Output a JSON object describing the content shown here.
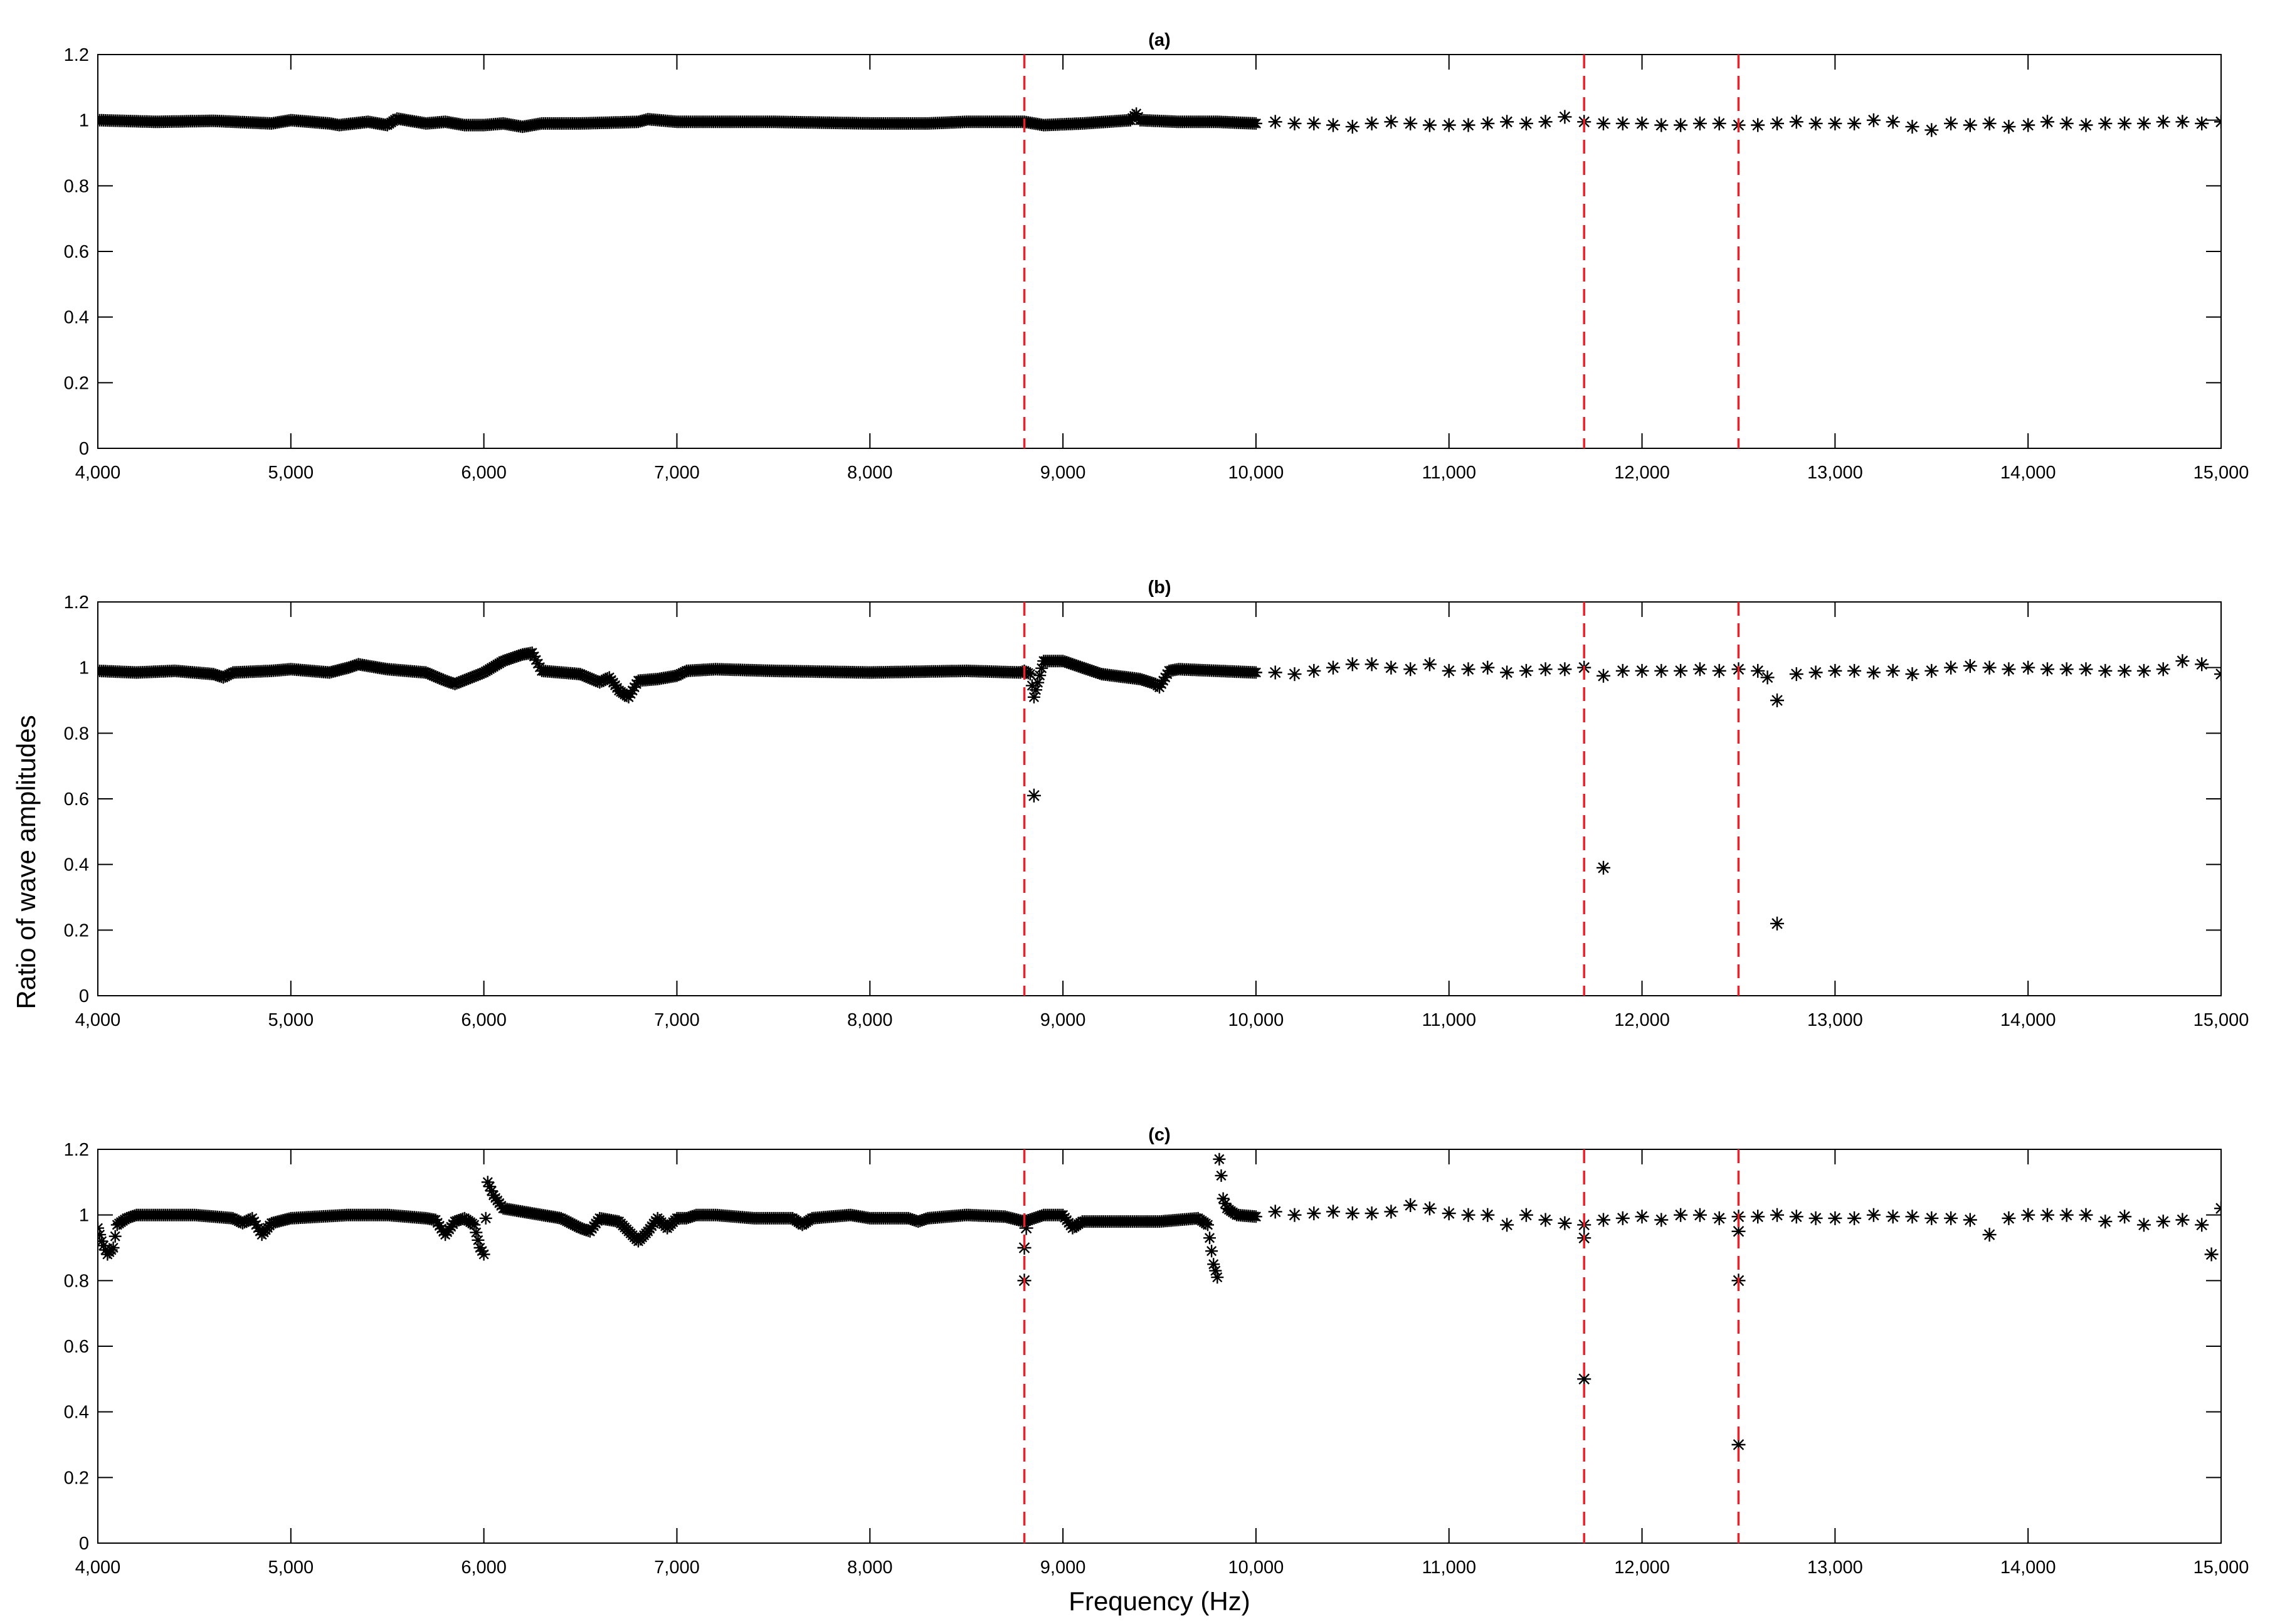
{
  "figure": {
    "ylabel": "Ratio of wave amplitudes",
    "xlabel": "Frequency (Hz)"
  },
  "chart_data": [
    {
      "type": "scatter",
      "title": "(a)",
      "marker": "asterisk",
      "marker_color": "#000000",
      "xlim": [
        4000,
        15000
      ],
      "ylim": [
        0,
        1.2
      ],
      "x_ticks": [
        4000,
        5000,
        6000,
        7000,
        8000,
        9000,
        10000,
        11000,
        12000,
        13000,
        14000,
        15000
      ],
      "x_tick_labels": [
        "4,000",
        "5,000",
        "6,000",
        "7,000",
        "8,000",
        "9,000",
        "10,000",
        "11,000",
        "12,000",
        "13,000",
        "14,000",
        "15,000"
      ],
      "y_ticks": [
        0,
        0.2,
        0.4,
        0.6,
        0.8,
        1,
        1.2
      ],
      "y_tick_labels": [
        "0",
        "0.2",
        "0.4",
        "0.6",
        "0.8",
        "1",
        "1.2"
      ],
      "reference_lines": {
        "x": [
          8800,
          11700,
          12500
        ],
        "color": "#e8222b",
        "style": "dashed"
      },
      "series": [
        {
          "style": "dense",
          "x": [
            4000,
            4300,
            4600,
            4900,
            5000,
            5200,
            5250,
            5400,
            5500,
            5550,
            5700,
            5800,
            5900,
            6000,
            6100,
            6200,
            6300,
            6500,
            6800,
            6850,
            7000,
            7500,
            8000,
            8300,
            8500,
            8800,
            8850,
            8900,
            9100,
            9350,
            9380,
            9400,
            9600,
            9800,
            10000
          ],
          "y": [
            1.0,
            0.995,
            0.998,
            0.99,
            1.0,
            0.99,
            0.985,
            0.995,
            0.985,
            1.005,
            0.99,
            0.995,
            0.985,
            0.985,
            0.99,
            0.98,
            0.99,
            0.99,
            0.995,
            1.003,
            0.995,
            0.995,
            0.99,
            0.99,
            0.995,
            0.995,
            0.99,
            0.985,
            0.99,
            1.0,
            1.02,
            1.0,
            0.995,
            0.995,
            0.99
          ]
        },
        {
          "style": "sparse",
          "x": [
            10100,
            10200,
            10300,
            10400,
            10500,
            10600,
            10700,
            10800,
            10900,
            11000,
            11100,
            11200,
            11300,
            11400,
            11500,
            11600,
            11700,
            11800,
            11900,
            12000,
            12100,
            12200,
            12300,
            12400,
            12500,
            12600,
            12700,
            12800,
            12900,
            13000,
            13100,
            13200,
            13300,
            13400,
            13500,
            13600,
            13700,
            13800,
            13900,
            14000,
            14100,
            14200,
            14300,
            14400,
            14500,
            14600,
            14700,
            14800,
            14900,
            15000
          ],
          "y": [
            0.995,
            0.99,
            0.99,
            0.985,
            0.98,
            0.99,
            0.995,
            0.99,
            0.985,
            0.985,
            0.985,
            0.99,
            0.995,
            0.99,
            0.995,
            1.01,
            0.995,
            0.99,
            0.99,
            0.99,
            0.985,
            0.985,
            0.99,
            0.99,
            0.985,
            0.985,
            0.99,
            0.995,
            0.99,
            0.99,
            0.99,
            1.0,
            0.995,
            0.98,
            0.97,
            0.99,
            0.985,
            0.99,
            0.98,
            0.985,
            0.995,
            0.99,
            0.985,
            0.99,
            0.99,
            0.99,
            0.995,
            0.995,
            0.99,
            0.995
          ]
        }
      ]
    },
    {
      "type": "scatter",
      "title": "(b)",
      "marker": "asterisk",
      "marker_color": "#000000",
      "xlim": [
        4000,
        15000
      ],
      "ylim": [
        0,
        1.2
      ],
      "x_ticks": [
        4000,
        5000,
        6000,
        7000,
        8000,
        9000,
        10000,
        11000,
        12000,
        13000,
        14000,
        15000
      ],
      "x_tick_labels": [
        "4,000",
        "5,000",
        "6,000",
        "7,000",
        "8,000",
        "9,000",
        "10,000",
        "11,000",
        "12,000",
        "13,000",
        "14,000",
        "15,000"
      ],
      "y_ticks": [
        0,
        0.2,
        0.4,
        0.6,
        0.8,
        1,
        1.2
      ],
      "y_tick_labels": [
        "0",
        "0.2",
        "0.4",
        "0.6",
        "0.8",
        "1",
        "1.2"
      ],
      "reference_lines": {
        "x": [
          8800,
          11700,
          12500
        ],
        "color": "#e8222b",
        "style": "dashed"
      },
      "series": [
        {
          "style": "dense",
          "x": [
            4000,
            4200,
            4400,
            4600,
            4650,
            4700,
            4900,
            5000,
            5200,
            5300,
            5350,
            5500,
            5700,
            5800,
            5850,
            6000,
            6100,
            6200,
            6250,
            6300,
            6500,
            6600,
            6650,
            6700,
            6750,
            6800,
            6900,
            7000,
            7050,
            7200,
            7500,
            8000,
            8500,
            8780,
            8800,
            8830,
            8850,
            8900,
            9000,
            9100,
            9200,
            9400,
            9480,
            9500,
            9550,
            9600,
            9800,
            10000
          ],
          "y": [
            0.99,
            0.985,
            0.99,
            0.98,
            0.97,
            0.985,
            0.99,
            0.995,
            0.985,
            1.0,
            1.01,
            0.995,
            0.985,
            0.96,
            0.95,
            0.985,
            1.02,
            1.04,
            1.045,
            0.99,
            0.98,
            0.955,
            0.97,
            0.93,
            0.91,
            0.96,
            0.965,
            0.975,
            0.99,
            0.995,
            0.99,
            0.985,
            0.99,
            0.985,
            0.99,
            0.98,
            0.91,
            1.02,
            1.02,
            1.0,
            0.98,
            0.965,
            0.95,
            0.94,
            0.99,
            0.995,
            0.99,
            0.985
          ]
        },
        {
          "style": "sparse",
          "x": [
            10100,
            10200,
            10300,
            10400,
            10500,
            10600,
            10700,
            10800,
            10900,
            11000,
            11100,
            11200,
            11300,
            11400,
            11500,
            11600,
            11700,
            11800,
            11900,
            12000,
            12100,
            12200,
            12300,
            12400,
            12500,
            12600,
            12650,
            12700,
            12800,
            12900,
            13000,
            13100,
            13200,
            13300,
            13400,
            13500,
            13600,
            13700,
            13800,
            13900,
            14000,
            14100,
            14200,
            14300,
            14400,
            14500,
            14600,
            14700,
            14800,
            14900,
            15000
          ],
          "y": [
            0.985,
            0.98,
            0.99,
            1.0,
            1.01,
            1.01,
            1.0,
            0.995,
            1.01,
            0.99,
            0.995,
            1.0,
            0.985,
            0.99,
            0.995,
            0.995,
            1.0,
            0.975,
            0.99,
            0.99,
            0.99,
            0.99,
            0.995,
            0.99,
            0.995,
            0.99,
            0.97,
            0.9,
            0.98,
            0.985,
            0.99,
            0.99,
            0.985,
            0.99,
            0.98,
            0.99,
            1.0,
            1.005,
            1.0,
            0.995,
            1.0,
            0.995,
            0.995,
            0.995,
            0.99,
            0.99,
            0.99,
            0.995,
            1.02,
            1.01,
            0.98
          ]
        },
        {
          "style": "outlier",
          "x": [
            8850,
            11800,
            12700
          ],
          "y": [
            0.61,
            0.39,
            0.22
          ]
        }
      ]
    },
    {
      "type": "scatter",
      "title": "(c)",
      "marker": "asterisk",
      "marker_color": "#000000",
      "xlim": [
        4000,
        15000
      ],
      "ylim": [
        0,
        1.2
      ],
      "x_ticks": [
        4000,
        5000,
        6000,
        7000,
        8000,
        9000,
        10000,
        11000,
        12000,
        13000,
        14000,
        15000
      ],
      "x_tick_labels": [
        "4,000",
        "5,000",
        "6,000",
        "7,000",
        "8,000",
        "9,000",
        "10,000",
        "11,000",
        "12,000",
        "13,000",
        "14,000",
        "15,000"
      ],
      "y_ticks": [
        0,
        0.2,
        0.4,
        0.6,
        0.8,
        1,
        1.2
      ],
      "y_tick_labels": [
        "0",
        "0.2",
        "0.4",
        "0.6",
        "0.8",
        "1",
        "1.2"
      ],
      "reference_lines": {
        "x": [
          8800,
          11700,
          12500
        ],
        "color": "#e8222b",
        "style": "dashed"
      },
      "series": [
        {
          "style": "dense",
          "x": [
            4000,
            4020,
            4050,
            4080,
            4100,
            4150,
            4200,
            4300,
            4500,
            4700,
            4750,
            4800,
            4850,
            4900,
            5000,
            5300,
            5500,
            5700,
            5750,
            5800,
            5850,
            5900,
            5950,
            5980,
            6000,
            6020,
            6050,
            6100,
            6200,
            6300,
            6400,
            6500,
            6550,
            6600,
            6700,
            6800,
            6850,
            6900,
            6950,
            7000,
            7050,
            7100,
            7200,
            7400,
            7600,
            7650,
            7700,
            7900,
            8000,
            8200,
            8250,
            8300,
            8500,
            8700,
            8800,
            8900,
            9000,
            9050,
            9100,
            9300,
            9500,
            9700,
            9750,
            9780,
            9800,
            9810,
            9820,
            9830,
            9850,
            9900,
            10000
          ],
          "y": [
            0.96,
            0.92,
            0.88,
            0.9,
            0.97,
            0.99,
            1.0,
            1.0,
            1.0,
            0.99,
            0.975,
            0.99,
            0.94,
            0.975,
            0.99,
            1.0,
            1.0,
            0.99,
            0.985,
            0.94,
            0.98,
            0.99,
            0.97,
            0.9,
            0.88,
            1.1,
            1.06,
            1.02,
            1.01,
            1.0,
            0.99,
            0.96,
            0.95,
            0.99,
            0.98,
            0.92,
            0.95,
            0.99,
            0.96,
            0.99,
            0.99,
            1.0,
            1.0,
            0.99,
            0.99,
            0.97,
            0.99,
            1.0,
            0.99,
            0.99,
            0.98,
            0.99,
            1.0,
            0.995,
            0.98,
            1.0,
            1.0,
            0.96,
            0.98,
            0.98,
            0.98,
            0.99,
            0.97,
            0.85,
            0.81,
            1.17,
            1.12,
            1.05,
            1.02,
            1.0,
            0.995
          ]
        },
        {
          "style": "sparse",
          "x": [
            10100,
            10200,
            10300,
            10400,
            10500,
            10600,
            10700,
            10800,
            10900,
            11000,
            11100,
            11200,
            11300,
            11400,
            11500,
            11600,
            11700,
            11800,
            11900,
            12000,
            12100,
            12200,
            12300,
            12400,
            12500,
            12600,
            12700,
            12800,
            12900,
            13000,
            13100,
            13200,
            13300,
            13400,
            13500,
            13600,
            13700,
            13800,
            13900,
            14000,
            14100,
            14200,
            14300,
            14400,
            14500,
            14600,
            14700,
            14800,
            14900,
            14950,
            15000
          ],
          "y": [
            1.01,
            1.0,
            1.005,
            1.01,
            1.005,
            1.005,
            1.01,
            1.03,
            1.02,
            1.005,
            1.0,
            1.0,
            0.97,
            1.0,
            0.985,
            0.975,
            0.97,
            0.985,
            0.99,
            0.995,
            0.985,
            1.0,
            1.0,
            0.99,
            0.995,
            0.995,
            1.0,
            0.995,
            0.99,
            0.99,
            0.99,
            1.0,
            0.995,
            0.995,
            0.99,
            0.99,
            0.985,
            0.94,
            0.99,
            1.0,
            1.0,
            1.0,
            1.0,
            0.98,
            0.995,
            0.97,
            0.98,
            0.985,
            0.97,
            0.88,
            1.02
          ]
        },
        {
          "style": "outlier",
          "x": [
            8800,
            8800,
            8810,
            11700,
            11700,
            12500,
            12500,
            12500
          ],
          "y": [
            0.9,
            0.8,
            0.96,
            0.5,
            0.93,
            0.3,
            0.8,
            0.95
          ]
        }
      ]
    }
  ]
}
